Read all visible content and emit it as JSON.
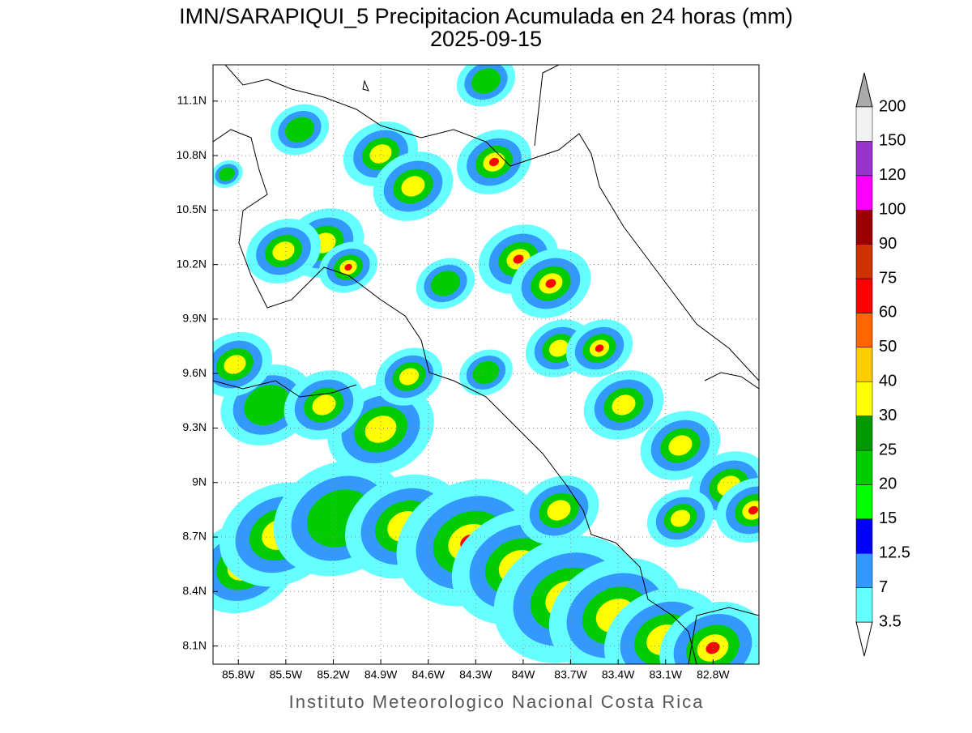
{
  "title": "IMN/SARAPIQUI_5 Precipitacion Acumulada en 24 horas (mm)",
  "subtitle": "2025-09-15",
  "footer": "Instituto Meteorologico Nacional Costa Rica",
  "map": {
    "xlim": [
      -85.96,
      -82.51
    ],
    "ylim": [
      8.0,
      11.3
    ],
    "grid": true,
    "xticks": [
      {
        "value": -85.8,
        "label": "85.8W"
      },
      {
        "value": -85.5,
        "label": "85.5W"
      },
      {
        "value": -85.2,
        "label": "85.2W"
      },
      {
        "value": -84.9,
        "label": "84.9W"
      },
      {
        "value": -84.6,
        "label": "84.6W"
      },
      {
        "value": -84.3,
        "label": "84.3W"
      },
      {
        "value": -84,
        "label": "84W"
      },
      {
        "value": -83.7,
        "label": "83.7W"
      },
      {
        "value": -83.4,
        "label": "83.4W"
      },
      {
        "value": -83.1,
        "label": "83.1W"
      },
      {
        "value": -82.8,
        "label": "82.8W"
      }
    ],
    "yticks": [
      {
        "value": 8.1,
        "label": "8.1N"
      },
      {
        "value": 8.4,
        "label": "8.4N"
      },
      {
        "value": 8.7,
        "label": "8.7N"
      },
      {
        "value": 9,
        "label": "9N"
      },
      {
        "value": 9.3,
        "label": "9.3N"
      },
      {
        "value": 9.6,
        "label": "9.6N"
      },
      {
        "value": 9.9,
        "label": "9.9N"
      },
      {
        "value": 10.2,
        "label": "10.2N"
      },
      {
        "value": 10.5,
        "label": "10.5N"
      },
      {
        "value": 10.8,
        "label": "10.8N"
      },
      {
        "value": 11.1,
        "label": "11.1N"
      }
    ]
  },
  "colorbar": {
    "levels": [
      3.5,
      7,
      12.5,
      15,
      20,
      25,
      30,
      40,
      50,
      60,
      75,
      90,
      100,
      120,
      150,
      200
    ],
    "colors": [
      "#ffffff",
      "#66ffff",
      "#3399ff",
      "#0000ff",
      "#00ff00",
      "#00cc00",
      "#009900",
      "#ffff00",
      "#ffcc00",
      "#ff6600",
      "#ff0000",
      "#cc3300",
      "#990000",
      "#ff00ff",
      "#9933cc",
      "#f2f2f2",
      "#aaaaaa"
    ]
  }
}
